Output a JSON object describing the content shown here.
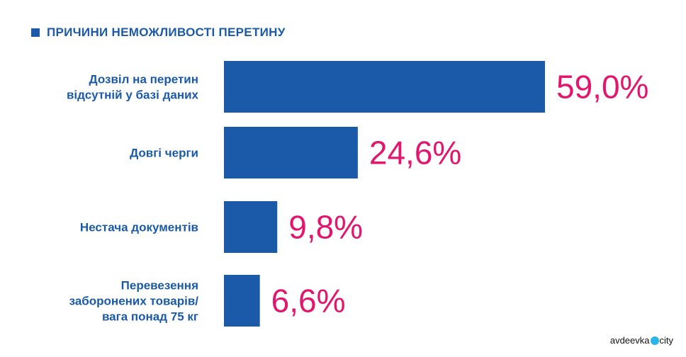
{
  "chart_data": {
    "type": "bar",
    "orientation": "horizontal",
    "title": "ПРИЧИНИ НЕМОЖЛИВОСТІ ПЕРЕТИНУ",
    "categories": [
      [
        "Дозвіл на перетин",
        "відсутній у базі даних"
      ],
      [
        "Довгі черги"
      ],
      [
        "Нестача документів"
      ],
      [
        "Перевезення",
        "заборонених товарів/",
        "вага понад 75 кг"
      ]
    ],
    "values": [
      59.0,
      24.6,
      9.8,
      6.6
    ],
    "value_labels": [
      "59,0%",
      "24,6%",
      "9,8%",
      "6,6%"
    ],
    "unit": "%",
    "xlim": [
      0,
      59.0
    ],
    "grid": false,
    "legend": "none",
    "colors": {
      "bar": "#1a5aa8",
      "value": "#e3166e",
      "category": "#1a5aa8"
    }
  },
  "watermark": {
    "left": "avdeevka",
    "right": "city"
  }
}
